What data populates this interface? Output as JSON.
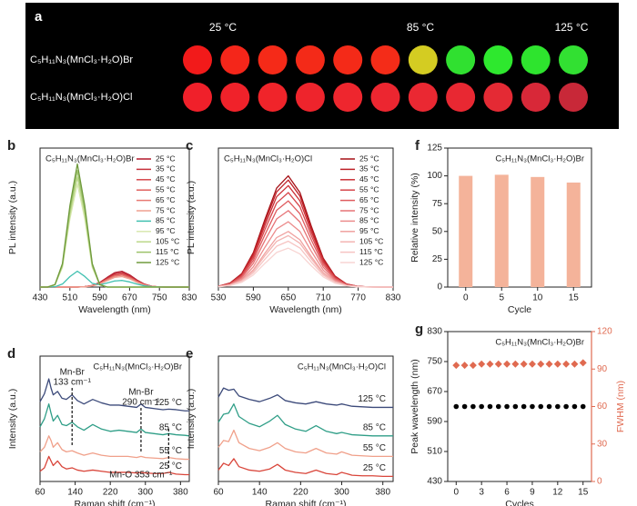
{
  "panel_a": {
    "panel": "a",
    "temperature_labels": [
      "25 °C",
      "85 °C",
      "125 °C"
    ],
    "rows": [
      {
        "label": "C₅H₁₁N₃(MnCl₃·H₂O)Br",
        "dot_colors": [
          "#f21a1a",
          "#f4261a",
          "#f52a18",
          "#f42a18",
          "#f42a18",
          "#f42c18",
          "#d4cc22",
          "#30e030",
          "#2ee82e",
          "#2ee42e",
          "#32e032"
        ]
      },
      {
        "label": "C₅H₁₁N₃(MnCl₃·H₂O)Cl",
        "dot_colors": [
          "#f0202a",
          "#f0222a",
          "#f0242a",
          "#ee242c",
          "#ee262e",
          "#ec2630",
          "#ea2832",
          "#e82832",
          "#e42a34",
          "#d82838",
          "#c82838"
        ]
      }
    ]
  },
  "chart_data": [
    {
      "panel": "b",
      "type": "line",
      "title": "C₅H₁₁N₃(MnCl₃·H₂O)Br",
      "x_label": "Wavelength (nm)",
      "y_label": "PL intensity (a.u.)",
      "x": [
        430,
        450,
        470,
        490,
        510,
        530,
        550,
        570,
        590,
        610,
        630,
        650,
        670,
        690,
        710,
        730,
        750,
        770,
        790,
        810,
        830
      ],
      "xlim": [
        430,
        830
      ],
      "xticks": [
        430,
        510,
        590,
        670,
        750,
        830
      ],
      "ylim": [
        0,
        1.05
      ],
      "legend": "upper right",
      "series": [
        {
          "name": "25 °C",
          "color": "#b2182b",
          "values": [
            0,
            0,
            0,
            0,
            0,
            0,
            0.003,
            0.012,
            0.035,
            0.073,
            0.109,
            0.119,
            0.092,
            0.053,
            0.022,
            0.006,
            0.001,
            0,
            0,
            0,
            0
          ]
        },
        {
          "name": "35 °C",
          "color": "#c6303a",
          "values": [
            0,
            0,
            0,
            0,
            0,
            0,
            0.003,
            0.011,
            0.032,
            0.067,
            0.1,
            0.109,
            0.085,
            0.048,
            0.02,
            0.006,
            0.001,
            0,
            0,
            0,
            0
          ]
        },
        {
          "name": "45 °C",
          "color": "#d6464a",
          "values": [
            0,
            0,
            0,
            0,
            0,
            0,
            0.003,
            0.01,
            0.029,
            0.061,
            0.091,
            0.099,
            0.077,
            0.044,
            0.018,
            0.005,
            0.001,
            0,
            0,
            0,
            0
          ]
        },
        {
          "name": "55 °C",
          "color": "#e0605d",
          "values": [
            0,
            0,
            0,
            0,
            0,
            0,
            0.002,
            0.01,
            0.028,
            0.058,
            0.086,
            0.094,
            0.073,
            0.042,
            0.017,
            0.005,
            0.001,
            0,
            0,
            0,
            0
          ]
        },
        {
          "name": "65 °C",
          "color": "#e87a73",
          "values": [
            0,
            0,
            0,
            0,
            0,
            0,
            0.002,
            0.009,
            0.026,
            0.055,
            0.082,
            0.089,
            0.069,
            0.04,
            0.016,
            0.005,
            0.001,
            0,
            0,
            0,
            0
          ]
        },
        {
          "name": "75 °C",
          "color": "#efa090",
          "values": [
            0,
            0,
            0,
            0,
            0,
            0,
            0.002,
            0.008,
            0.023,
            0.049,
            0.073,
            0.079,
            0.062,
            0.035,
            0.014,
            0.004,
            0.001,
            0,
            0,
            0,
            0
          ]
        },
        {
          "name": "85 °C",
          "color": "#40c0b0",
          "values": [
            0,
            0,
            0.002,
            0.023,
            0.079,
            0.12,
            0.08,
            0.028,
            0.017,
            0.031,
            0.046,
            0.05,
            0.039,
            0.022,
            0.009,
            0.003,
            0.001,
            0,
            0,
            0,
            0
          ]
        },
        {
          "name": "95 °C",
          "color": "#d8e8b0",
          "values": [
            0,
            0,
            0.016,
            0.148,
            0.515,
            0.78,
            0.515,
            0.148,
            0.016,
            0,
            0,
            0,
            0,
            0,
            0,
            0,
            0,
            0,
            0,
            0,
            0
          ]
        },
        {
          "name": "105 °C",
          "color": "#bcd88a",
          "values": [
            0,
            0,
            0.017,
            0.158,
            0.548,
            0.83,
            0.548,
            0.158,
            0.017,
            0,
            0,
            0,
            0,
            0,
            0,
            0,
            0,
            0,
            0,
            0,
            0
          ]
        },
        {
          "name": "115 °C",
          "color": "#9cc26a",
          "values": [
            0,
            0,
            0.018,
            0.167,
            0.581,
            0.88,
            0.581,
            0.167,
            0.018,
            0,
            0,
            0,
            0,
            0,
            0,
            0,
            0,
            0,
            0,
            0,
            0
          ]
        },
        {
          "name": "125 °C",
          "color": "#6f9a3c",
          "values": [
            0,
            0,
            0.019,
            0.177,
            0.614,
            0.93,
            0.614,
            0.177,
            0.019,
            0,
            0,
            0,
            0,
            0,
            0,
            0,
            0,
            0,
            0,
            0,
            0
          ]
        }
      ]
    },
    {
      "panel": "c",
      "type": "line",
      "title": "C₅H₁₁N₃(MnCl₃·H₂O)Cl",
      "x_label": "Wavelength (nm)",
      "y_label": "PL intensity (a.u.)",
      "x": [
        530,
        550,
        570,
        590,
        610,
        630,
        650,
        670,
        690,
        710,
        730,
        750,
        770,
        790,
        810,
        830
      ],
      "xlim": [
        530,
        830
      ],
      "xticks": [
        530,
        590,
        650,
        710,
        770,
        830
      ],
      "ylim": [
        0,
        1.0
      ],
      "legend": "upper right",
      "series": [
        {
          "name": "25 °C",
          "color": "#a50f15",
          "values": [
            0.006,
            0.029,
            0.096,
            0.248,
            0.488,
            0.712,
            0.8,
            0.68,
            0.432,
            0.208,
            0.08,
            0.022,
            0.005,
            0.001,
            0,
            0
          ]
        },
        {
          "name": "35 °C",
          "color": "#bd1f26",
          "values": [
            0.006,
            0.028,
            0.092,
            0.239,
            0.47,
            0.685,
            0.77,
            0.655,
            0.416,
            0.2,
            0.077,
            0.021,
            0.005,
            0.001,
            0,
            0
          ]
        },
        {
          "name": "45 °C",
          "color": "#cb2f35",
          "values": [
            0.006,
            0.026,
            0.088,
            0.226,
            0.445,
            0.65,
            0.73,
            0.621,
            0.394,
            0.19,
            0.073,
            0.02,
            0.004,
            0.001,
            0,
            0
          ]
        },
        {
          "name": "55 °C",
          "color": "#d6454a",
          "values": [
            0.005,
            0.024,
            0.082,
            0.211,
            0.415,
            0.605,
            0.68,
            0.578,
            0.367,
            0.177,
            0.068,
            0.018,
            0.004,
            0.001,
            0,
            0
          ]
        },
        {
          "name": "65 °C",
          "color": "#df5b5e",
          "values": [
            0.005,
            0.022,
            0.074,
            0.192,
            0.378,
            0.552,
            0.62,
            0.527,
            0.335,
            0.161,
            0.062,
            0.017,
            0.004,
            0.001,
            0,
            0
          ]
        },
        {
          "name": "75 °C",
          "color": "#e67376",
          "values": [
            0.004,
            0.02,
            0.066,
            0.171,
            0.336,
            0.49,
            0.55,
            0.468,
            0.297,
            0.143,
            0.055,
            0.015,
            0.003,
            0.001,
            0,
            0
          ]
        },
        {
          "name": "85 °C",
          "color": "#ec8c8c",
          "values": [
            0.004,
            0.017,
            0.056,
            0.146,
            0.287,
            0.418,
            0.47,
            0.4,
            0.254,
            0.122,
            0.047,
            0.013,
            0.003,
            0,
            0,
            0
          ]
        },
        {
          "name": "95 °C",
          "color": "#f0a2a0",
          "values": [
            0.003,
            0.014,
            0.048,
            0.124,
            0.244,
            0.356,
            0.4,
            0.34,
            0.216,
            0.104,
            0.04,
            0.011,
            0.002,
            0,
            0,
            0
          ]
        },
        {
          "name": "105 °C",
          "color": "#f3b4b2",
          "values": [
            0.003,
            0.013,
            0.044,
            0.115,
            0.226,
            0.329,
            0.37,
            0.315,
            0.2,
            0.096,
            0.037,
            0.01,
            0.002,
            0,
            0,
            0
          ]
        },
        {
          "name": "115 °C",
          "color": "#f6c4c2",
          "values": [
            0.003,
            0.012,
            0.04,
            0.102,
            0.201,
            0.294,
            0.33,
            0.281,
            0.178,
            0.086,
            0.033,
            0.009,
            0.002,
            0,
            0,
            0
          ]
        },
        {
          "name": "125 °C",
          "color": "#f8d4d2",
          "values": [
            0.002,
            0.01,
            0.034,
            0.087,
            0.171,
            0.249,
            0.28,
            0.238,
            0.151,
            0.073,
            0.028,
            0.008,
            0.002,
            0,
            0,
            0
          ]
        }
      ]
    },
    {
      "panel": "f",
      "type": "bar",
      "title": "C₅H₁₁N₃(MnCl₃·H₂O)Br",
      "x_label": "Cycle",
      "y_label": "Relative intensity (%)",
      "categories": [
        "0",
        "5",
        "10",
        "15"
      ],
      "values": [
        100,
        101,
        99,
        94
      ],
      "color": "#f4b39a",
      "ylim": [
        0,
        125
      ],
      "yticks": [
        0,
        25,
        50,
        75,
        100,
        125
      ]
    },
    {
      "panel": "d",
      "type": "offset_line",
      "title": "C₅H₁₁N₃(MnCl₃·H₂O)Br",
      "x_label": "Raman shift (cm⁻¹)",
      "y_label": "Intensity (a.u.)",
      "x": [
        60,
        70,
        80,
        85,
        90,
        100,
        110,
        120,
        133,
        145,
        160,
        180,
        200,
        220,
        240,
        260,
        280,
        290,
        300,
        320,
        340,
        353,
        370,
        390,
        400
      ],
      "xlim": [
        60,
        400
      ],
      "xticks": [
        60,
        140,
        220,
        300,
        380
      ],
      "ylim": [
        0,
        11
      ],
      "series": [
        {
          "name": "25 °C",
          "color": "#d9453a",
          "values": [
            0.9,
            1.2,
            2.2,
            1.8,
            1.4,
            1.8,
            1.3,
            1.1,
            1.2,
            1.0,
            0.9,
            1.0,
            0.9,
            0.8,
            0.8,
            0.8,
            0.75,
            0.8,
            0.75,
            0.7,
            0.7,
            0.8,
            0.65,
            0.6,
            0.6
          ]
        },
        {
          "name": "55 °C",
          "color": "#f0a08a",
          "values": [
            2.6,
            3.0,
            4.0,
            3.6,
            3.0,
            3.4,
            2.8,
            2.6,
            2.7,
            2.5,
            2.3,
            2.5,
            2.3,
            2.2,
            2.2,
            2.2,
            2.1,
            2.2,
            2.1,
            2.05,
            2.0,
            2.1,
            2.0,
            1.95,
            1.95
          ]
        },
        {
          "name": "85 °C",
          "color": "#2f9e87",
          "values": [
            4.8,
            5.5,
            6.8,
            6.0,
            5.3,
            5.8,
            5.0,
            4.9,
            5.2,
            4.8,
            4.5,
            5.0,
            4.6,
            4.4,
            4.5,
            4.4,
            4.3,
            4.6,
            4.3,
            4.2,
            4.1,
            4.2,
            4.1,
            4.05,
            4.0
          ]
        },
        {
          "name": "125 °C",
          "color": "#3c4a7a",
          "values": [
            7.0,
            7.7,
            9.0,
            8.2,
            7.6,
            7.9,
            7.3,
            7.2,
            7.6,
            7.1,
            6.8,
            7.2,
            6.9,
            6.7,
            6.7,
            6.6,
            6.5,
            6.8,
            6.5,
            6.4,
            6.3,
            6.35,
            6.3,
            6.2,
            6.2
          ]
        }
      ],
      "annotations": [
        {
          "lines": [
            "Mn-Br",
            "133 cm⁻¹"
          ],
          "x": 133
        },
        {
          "lines": [
            "Mn-Br",
            "290 cm⁻¹"
          ],
          "x": 290
        },
        {
          "lines": [
            "Mn-O 353 cm⁻¹"
          ],
          "x": 353
        }
      ]
    },
    {
      "panel": "e",
      "type": "offset_line",
      "title": "C₅H₁₁N₃(MnCl₃·H₂O)Cl",
      "x_label": "Raman shift (cm⁻¹)",
      "y_label": "Intensity (a.u.)",
      "x": [
        60,
        70,
        80,
        90,
        100,
        120,
        140,
        160,
        175,
        190,
        210,
        230,
        250,
        270,
        290,
        300,
        320,
        340,
        360,
        380,
        400
      ],
      "xlim": [
        60,
        400
      ],
      "xticks": [
        60,
        140,
        220,
        300,
        380
      ],
      "ylim": [
        0,
        11
      ],
      "series": [
        {
          "name": "25 °C",
          "color": "#d9453a",
          "values": [
            1.0,
            1.6,
            1.4,
            2.0,
            1.3,
            1.0,
            0.9,
            1.1,
            1.5,
            1.0,
            0.8,
            0.7,
            1.0,
            0.7,
            0.6,
            0.8,
            0.55,
            0.5,
            0.5,
            0.45,
            0.45
          ]
        },
        {
          "name": "55 °C",
          "color": "#f0a08a",
          "values": [
            3.0,
            3.6,
            3.5,
            4.5,
            3.4,
            2.9,
            2.7,
            3.0,
            3.4,
            2.9,
            2.6,
            2.5,
            2.9,
            2.5,
            2.4,
            2.6,
            2.3,
            2.25,
            2.2,
            2.2,
            2.2
          ]
        },
        {
          "name": "85 °C",
          "color": "#2f9e87",
          "values": [
            5.2,
            5.9,
            6.0,
            6.8,
            5.7,
            5.1,
            4.8,
            5.3,
            5.8,
            5.0,
            4.6,
            4.4,
            4.9,
            4.4,
            4.2,
            4.3,
            4.1,
            4.05,
            4.0,
            4.0,
            4.0
          ]
        },
        {
          "name": "125 °C",
          "color": "#3c4a7a",
          "values": [
            7.4,
            8.2,
            8.0,
            8.1,
            7.5,
            7.2,
            7.0,
            7.3,
            7.6,
            7.1,
            6.9,
            6.8,
            7.0,
            6.8,
            6.7,
            6.8,
            6.6,
            6.55,
            6.5,
            6.5,
            6.5
          ]
        }
      ]
    },
    {
      "panel": "g",
      "type": "scatter",
      "title": "C₅H₁₁N₃(MnCl₃·H₂O)Br",
      "x_label": "Cycles",
      "y_label": "Peak wavelength (nm)",
      "y2_label": "FWHM (nm)",
      "x": [
        0,
        1,
        2,
        3,
        4,
        5,
        6,
        7,
        8,
        9,
        10,
        11,
        12,
        13,
        14,
        15
      ],
      "xlim": [
        -1,
        16
      ],
      "xticks": [
        0,
        3,
        6,
        9,
        12,
        15
      ],
      "ylim": [
        430,
        830
      ],
      "yticks": [
        430,
        510,
        590,
        670,
        750,
        830
      ],
      "y2lim": [
        0,
        120
      ],
      "y2ticks": [
        0,
        30,
        60,
        90,
        120
      ],
      "y2_color": "#e06a50",
      "series": [
        {
          "color": "#000000",
          "marker": "circle",
          "values": [
            630,
            630,
            630,
            630,
            630,
            630,
            630,
            630,
            630,
            630,
            630,
            630,
            630,
            630,
            630,
            630
          ]
        },
        {
          "color": "#e06a50",
          "marker": "diamond",
          "axis": "y2",
          "values": [
            93,
            93,
            93,
            94,
            94,
            94,
            94,
            94,
            94,
            94,
            94,
            94,
            94,
            94,
            94,
            95
          ]
        }
      ]
    }
  ]
}
